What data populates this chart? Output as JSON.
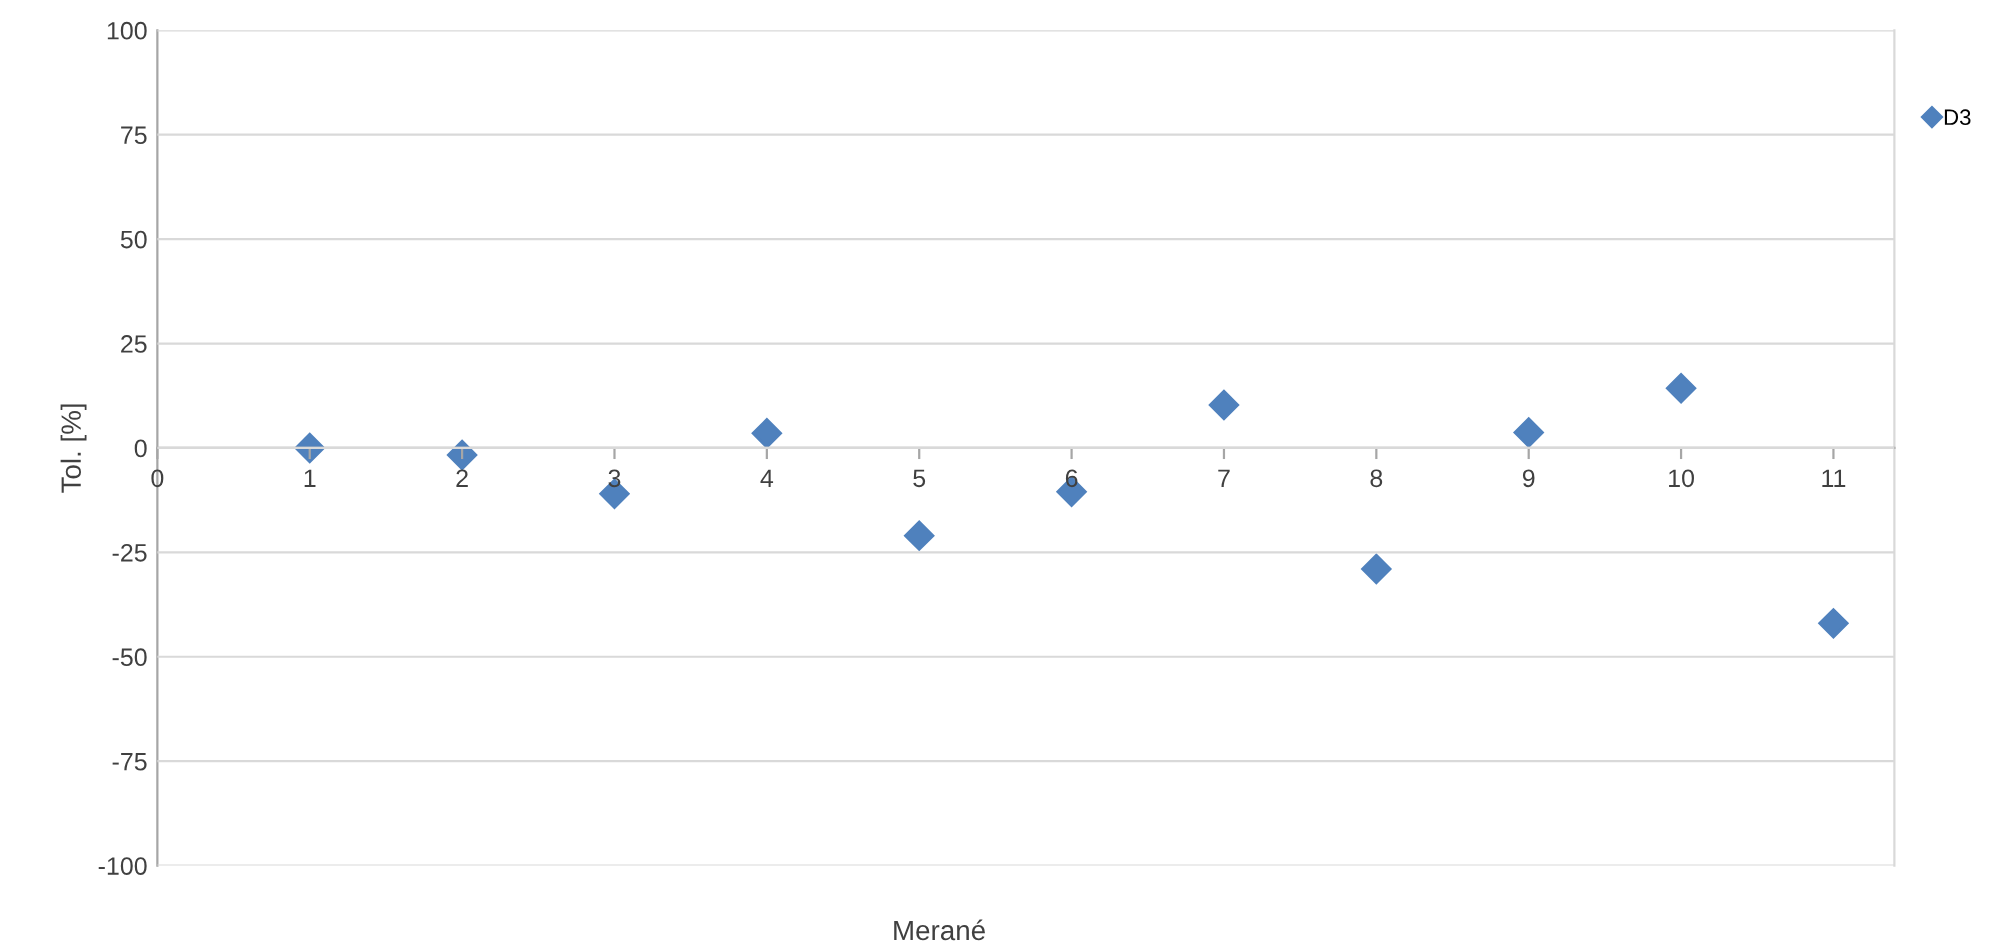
{
  "chart_data": {
    "type": "scatter",
    "xlabel": "Merané",
    "ylabel": "Tol. [%]",
    "x": [
      1,
      2,
      3,
      4,
      5,
      6,
      7,
      8,
      9,
      10,
      11
    ],
    "series": [
      {
        "name": "D3",
        "color": "#4f81bd",
        "values": [
          0,
          -1.7,
          -11,
          3.5,
          -21,
          -10.5,
          10.3,
          -29,
          3.7,
          14.3,
          -42
        ]
      }
    ],
    "xlim": [
      0,
      11.4
    ],
    "xticks": [
      0,
      1,
      2,
      3,
      4,
      5,
      6,
      7,
      8,
      9,
      10,
      11
    ],
    "ylim": [
      -100,
      100
    ],
    "yticks": [
      -100,
      -75,
      -50,
      -25,
      0,
      25,
      50,
      75,
      100
    ],
    "grid": "y",
    "legend": "top right",
    "marker": "diamond"
  }
}
